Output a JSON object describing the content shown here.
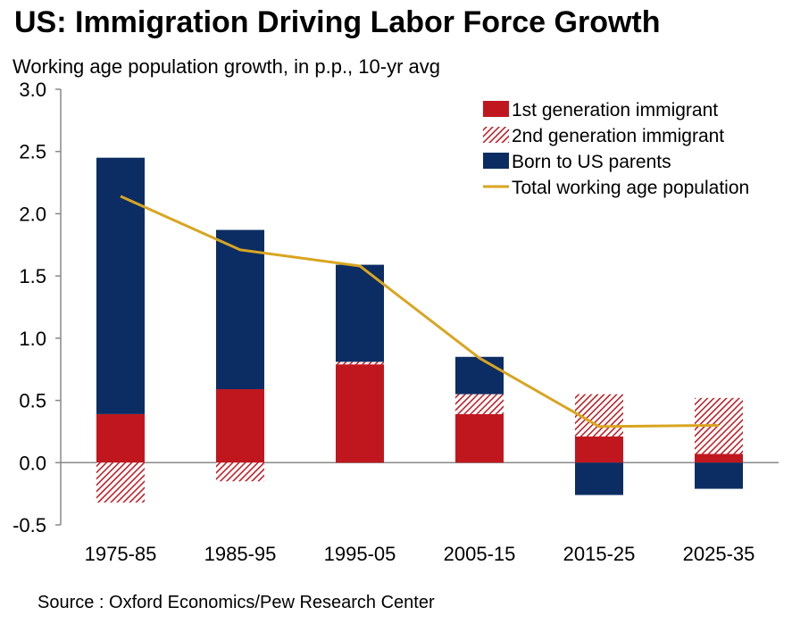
{
  "title": "US: Immigration Driving Labor Force Growth",
  "subtitle": "Working age population growth, in p.p., 10-yr avg",
  "source": "Source : Oxford Economics/Pew Research Center",
  "colors": {
    "first_gen": "#c0171f",
    "second_gen": "#c0171f",
    "born_us": "#0c2d63",
    "total": "#d9a520",
    "axis": "#888888"
  },
  "chart_data": {
    "type": "bar",
    "stacked": true,
    "categories": [
      "1975-85",
      "1985-95",
      "1995-05",
      "2005-15",
      "2015-25",
      "2025-35"
    ],
    "ylim": [
      -0.5,
      3.0
    ],
    "yticks": [
      "3.0",
      "2.5",
      "2.0",
      "1.5",
      "1.0",
      "0.5",
      "0.0",
      "-0.5"
    ],
    "ytick_values": [
      3.0,
      2.5,
      2.0,
      1.5,
      1.0,
      0.5,
      0.0,
      -0.5
    ],
    "legend_position": "top-right",
    "grid": false,
    "series": [
      {
        "name": "1st generation immigrant",
        "kind": "bar",
        "fill": "solid",
        "values": [
          0.39,
          0.59,
          0.79,
          0.39,
          0.21,
          0.07
        ]
      },
      {
        "name": "2nd generation immigrant",
        "kind": "bar",
        "fill": "hatched",
        "values": [
          -0.32,
          -0.15,
          0.02,
          0.16,
          0.34,
          0.45
        ]
      },
      {
        "name": "Born to US parents",
        "kind": "bar",
        "fill": "solid",
        "values": [
          2.06,
          1.28,
          0.78,
          0.3,
          -0.26,
          -0.21
        ]
      },
      {
        "name": "Total working age population",
        "kind": "line",
        "values": [
          2.14,
          1.71,
          1.58,
          0.84,
          0.29,
          0.3
        ]
      }
    ]
  }
}
